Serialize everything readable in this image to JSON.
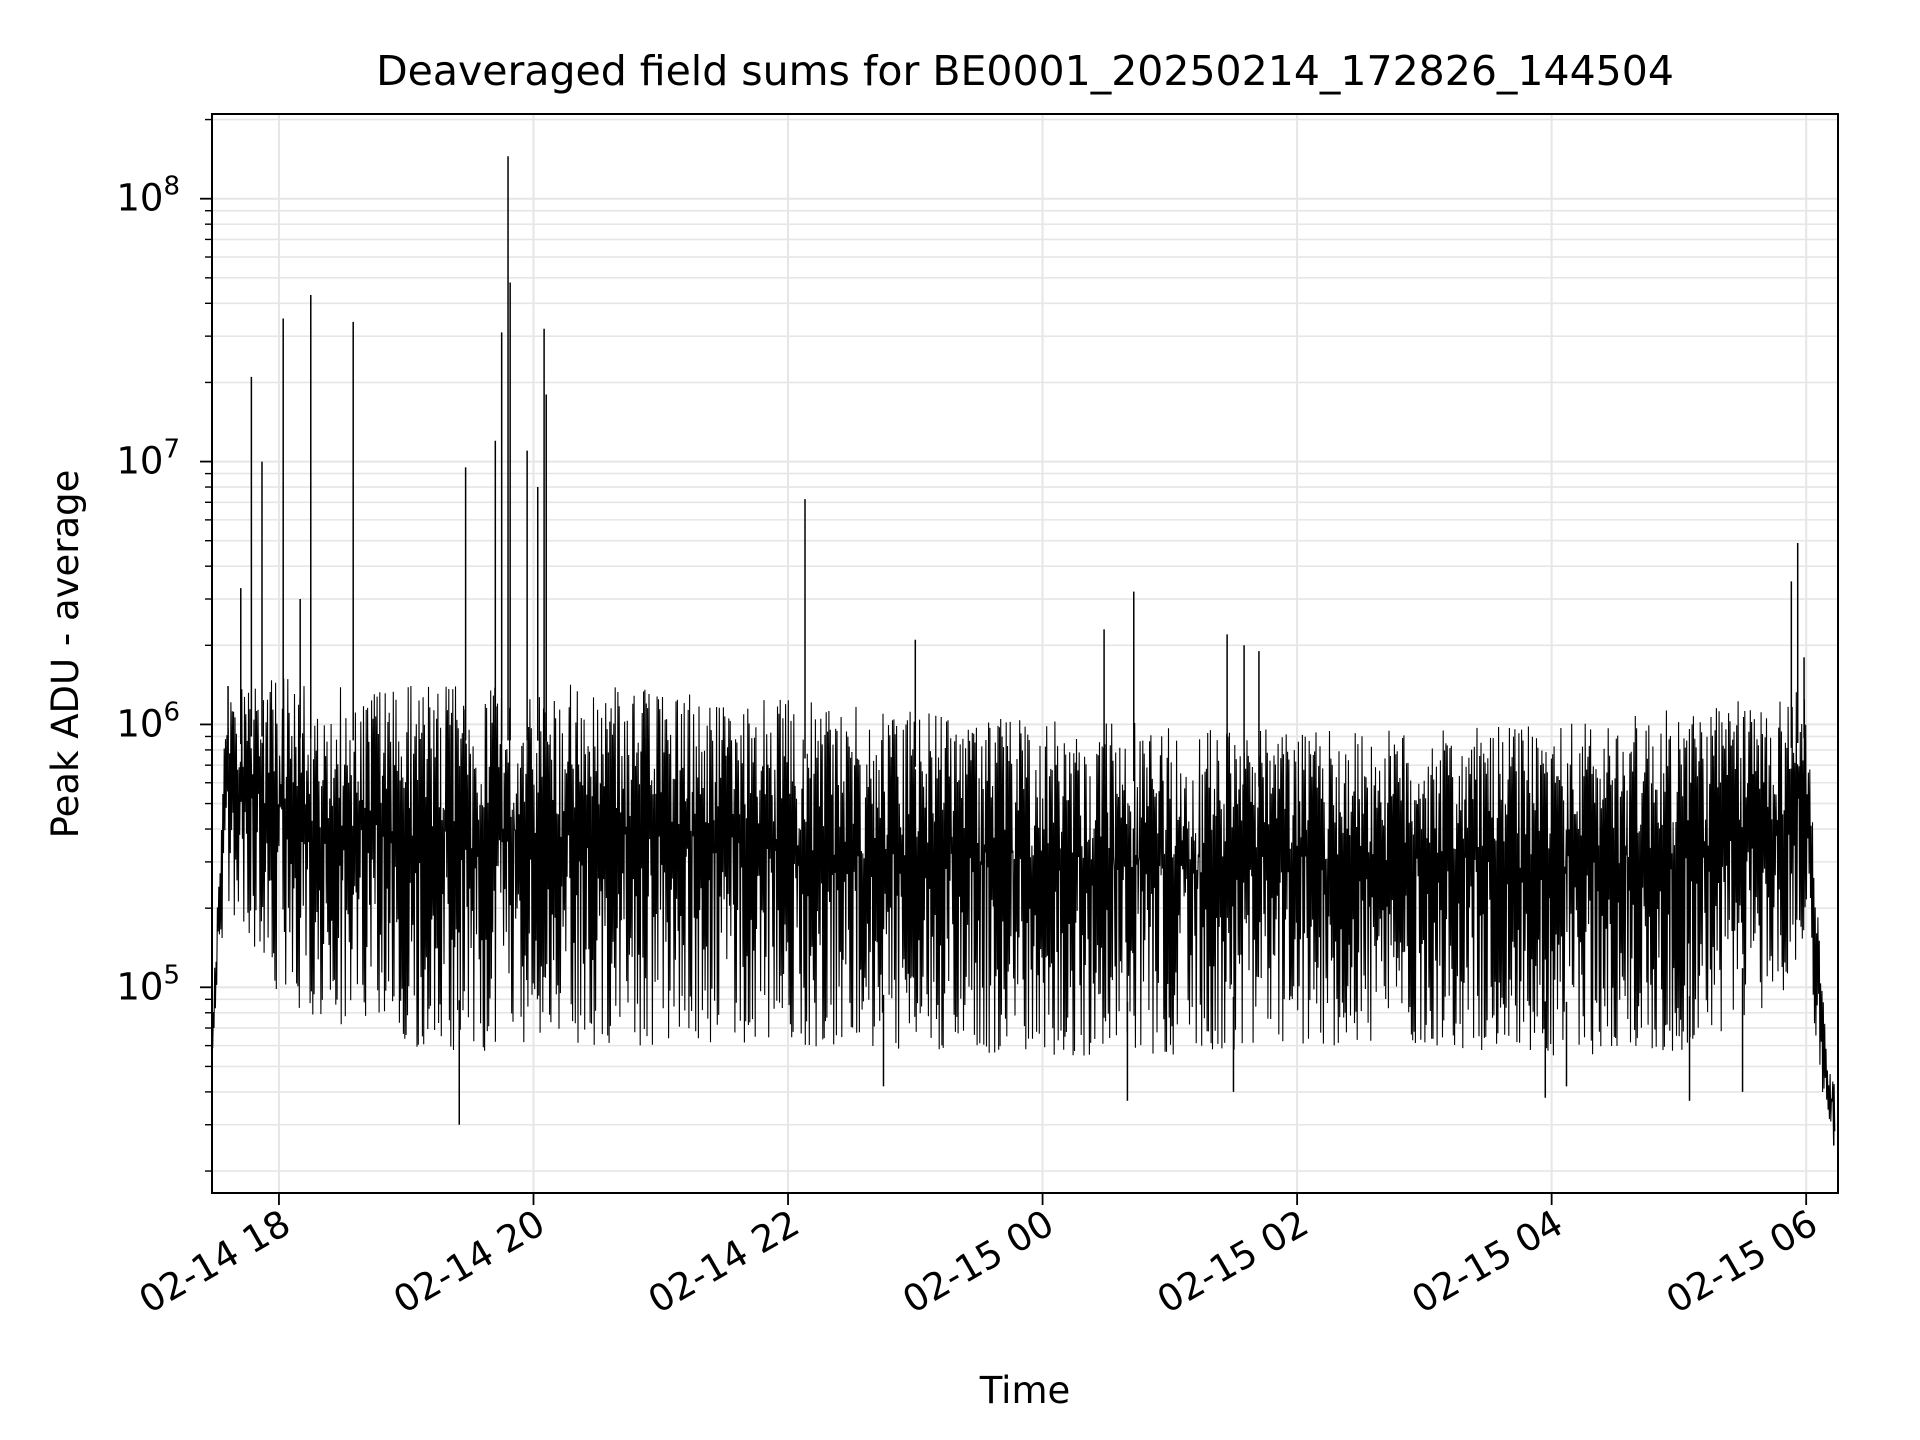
{
  "chart_data": {
    "type": "line",
    "title": "Deaveraged field sums for BE0001_20250214_172826_144504",
    "xlabel": "Time",
    "ylabel": "Peak ADU - average",
    "x_range": [
      "2025-02-14 17:28:26",
      "2025-02-15 06:15:00"
    ],
    "y_scale": "log",
    "y_range": [
      16500,
      210000000
    ],
    "grid": true,
    "x_ticks": [
      {
        "x": "2025-02-14 18:00",
        "label": "02-14 18"
      },
      {
        "x": "2025-02-14 20:00",
        "label": "02-14 20"
      },
      {
        "x": "2025-02-14 22:00",
        "label": "02-14 22"
      },
      {
        "x": "2025-02-15 00:00",
        "label": "02-15 00"
      },
      {
        "x": "2025-02-15 02:00",
        "label": "02-15 02"
      },
      {
        "x": "2025-02-15 04:00",
        "label": "02-15 04"
      },
      {
        "x": "2025-02-15 06:00",
        "label": "02-15 06"
      }
    ],
    "y_ticks": [
      {
        "value": 100000,
        "base": "10",
        "exp": "5"
      },
      {
        "value": 1000000,
        "base": "10",
        "exp": "6"
      },
      {
        "value": 10000000,
        "base": "10",
        "exp": "7"
      },
      {
        "value": 100000000,
        "base": "10",
        "exp": "8"
      }
    ],
    "series_color": "#000000",
    "grid_color": "#e6e6e6",
    "envelope": {
      "x": [
        "2025-02-14 17:28",
        "2025-02-14 17:35",
        "2025-02-14 17:45",
        "2025-02-14 18:00",
        "2025-02-14 18:30",
        "2025-02-14 19:00",
        "2025-02-14 19:30",
        "2025-02-14 20:00",
        "2025-02-14 20:30",
        "2025-02-14 21:00",
        "2025-02-14 22:00",
        "2025-02-14 23:00",
        "2025-02-15 00:00",
        "2025-02-15 01:00",
        "2025-02-15 02:00",
        "2025-02-15 03:00",
        "2025-02-15 04:00",
        "2025-02-15 05:00",
        "2025-02-15 05:50",
        "2025-02-15 06:00",
        "2025-02-15 06:05",
        "2025-02-15 06:10",
        "2025-02-15 06:15"
      ],
      "top": [
        60000,
        1200000,
        1500000,
        1500000,
        1450000,
        1450000,
        1450000,
        1450000,
        1400000,
        1350000,
        1250000,
        1150000,
        1050000,
        1000000,
        950000,
        950000,
        1000000,
        1150000,
        1300000,
        1500000,
        220000,
        50000,
        45000
      ],
      "low": [
        45000,
        200000,
        150000,
        90000,
        70000,
        60000,
        55000,
        60000,
        60000,
        60000,
        60000,
        58000,
        55000,
        55000,
        60000,
        60000,
        55000,
        55000,
        90000,
        150000,
        60000,
        28000,
        25000
      ]
    },
    "spikes": [
      {
        "x": "2025-02-14 17:36",
        "y": 1400000
      },
      {
        "x": "2025-02-14 17:42",
        "y": 3300000
      },
      {
        "x": "2025-02-14 17:47",
        "y": 21000000
      },
      {
        "x": "2025-02-14 17:52",
        "y": 10000000
      },
      {
        "x": "2025-02-14 18:02",
        "y": 35000000
      },
      {
        "x": "2025-02-14 18:10",
        "y": 3000000
      },
      {
        "x": "2025-02-14 18:15",
        "y": 43000000
      },
      {
        "x": "2025-02-14 18:35",
        "y": 34000000
      },
      {
        "x": "2025-02-14 19:28",
        "y": 9500000
      },
      {
        "x": "2025-02-14 19:42",
        "y": 12000000
      },
      {
        "x": "2025-02-14 19:45",
        "y": 31000000
      },
      {
        "x": "2025-02-14 19:48",
        "y": 145000000
      },
      {
        "x": "2025-02-14 19:49",
        "y": 48000000
      },
      {
        "x": "2025-02-14 19:57",
        "y": 11000000
      },
      {
        "x": "2025-02-14 20:02",
        "y": 8000000
      },
      {
        "x": "2025-02-14 20:05",
        "y": 32000000
      },
      {
        "x": "2025-02-14 20:06",
        "y": 18000000
      },
      {
        "x": "2025-02-14 22:08",
        "y": 7200000
      },
      {
        "x": "2025-02-14 23:00",
        "y": 2100000
      },
      {
        "x": "2025-02-15 00:29",
        "y": 2300000
      },
      {
        "x": "2025-02-15 00:43",
        "y": 3200000
      },
      {
        "x": "2025-02-15 01:27",
        "y": 2200000
      },
      {
        "x": "2025-02-15 01:35",
        "y": 2000000
      },
      {
        "x": "2025-02-15 01:42",
        "y": 1900000
      },
      {
        "x": "2025-02-15 05:53",
        "y": 3500000
      },
      {
        "x": "2025-02-15 05:56",
        "y": 4900000
      },
      {
        "x": "2025-02-15 05:59",
        "y": 1800000
      }
    ],
    "dips": [
      {
        "x": "2025-02-14 19:25",
        "y": 30000
      },
      {
        "x": "2025-02-14 22:45",
        "y": 42000
      },
      {
        "x": "2025-02-15 00:40",
        "y": 37000
      },
      {
        "x": "2025-02-15 01:30",
        "y": 40000
      },
      {
        "x": "2025-02-15 03:57",
        "y": 38000
      },
      {
        "x": "2025-02-15 04:07",
        "y": 42000
      },
      {
        "x": "2025-02-15 05:05",
        "y": 37000
      },
      {
        "x": "2025-02-15 05:30",
        "y": 40000
      },
      {
        "x": "2025-02-15 06:13",
        "y": 25000
      }
    ]
  }
}
